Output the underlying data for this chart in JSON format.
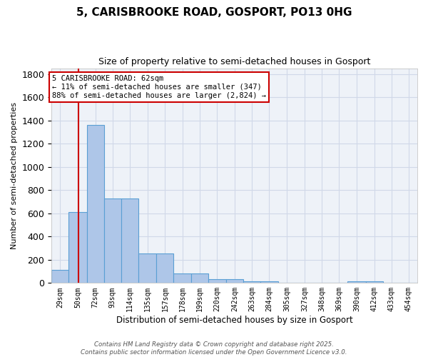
{
  "title_line1": "5, CARISBROOKE ROAD, GOSPORT, PO13 0HG",
  "title_line2": "Size of property relative to semi-detached houses in Gosport",
  "xlabel": "Distribution of semi-detached houses by size in Gosport",
  "ylabel": "Number of semi-detached properties",
  "bin_labels": [
    "29sqm",
    "50sqm",
    "72sqm",
    "93sqm",
    "114sqm",
    "135sqm",
    "157sqm",
    "178sqm",
    "199sqm",
    "220sqm",
    "242sqm",
    "263sqm",
    "284sqm",
    "305sqm",
    "327sqm",
    "348sqm",
    "369sqm",
    "390sqm",
    "412sqm",
    "433sqm",
    "454sqm"
  ],
  "bar_heights": [
    110,
    610,
    1360,
    730,
    730,
    255,
    255,
    80,
    80,
    35,
    35,
    15,
    15,
    5,
    5,
    0,
    0,
    15,
    15,
    0,
    0
  ],
  "bar_color": "#aec6e8",
  "bar_edge_color": "#5a9fd4",
  "grid_color": "#d0d8e8",
  "vline_x_index": 2,
  "vline_color": "#cc0000",
  "annotation_title": "5 CARISBROOKE ROAD: 62sqm",
  "annotation_line1": "← 11% of semi-detached houses are smaller (347)",
  "annotation_line2": "88% of semi-detached houses are larger (2,824) →",
  "annotation_box_color": "#cc0000",
  "footer_line1": "Contains HM Land Registry data © Crown copyright and database right 2025.",
  "footer_line2": "Contains public sector information licensed under the Open Government Licence v3.0.",
  "ylim": [
    0,
    1850
  ],
  "bin_edges": [
    29,
    50,
    72,
    93,
    114,
    135,
    157,
    178,
    199,
    220,
    242,
    263,
    284,
    305,
    327,
    348,
    369,
    390,
    412,
    433,
    454
  ],
  "vline_pos": 62
}
